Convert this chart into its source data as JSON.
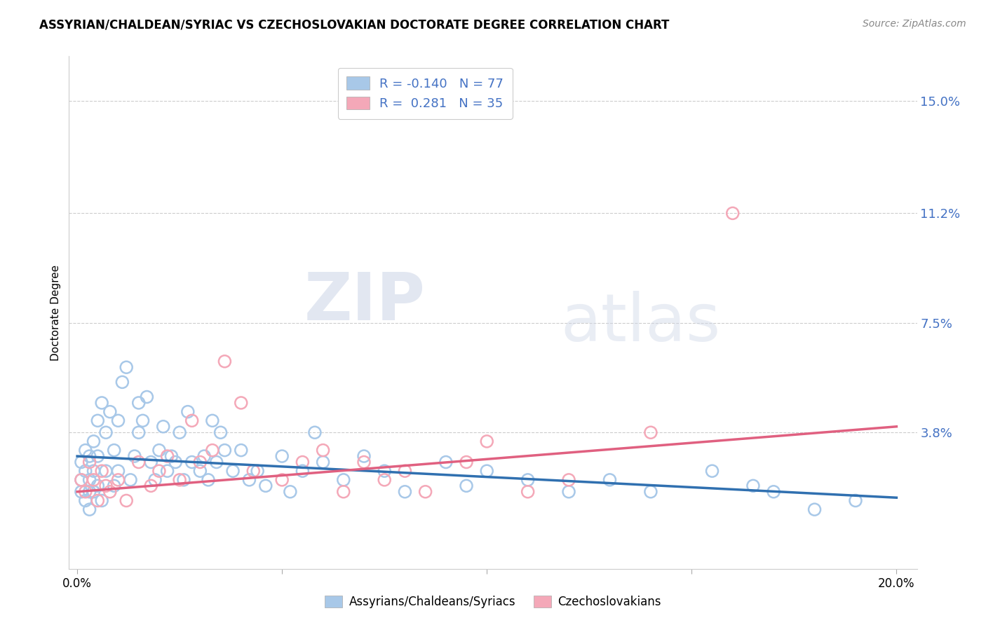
{
  "title": "ASSYRIAN/CHALDEAN/SYRIAC VS CZECHOSLOVAKIAN DOCTORATE DEGREE CORRELATION CHART",
  "source": "Source: ZipAtlas.com",
  "ylabel": "Doctorate Degree",
  "ytick_labels": [
    "3.8%",
    "7.5%",
    "11.2%",
    "15.0%"
  ],
  "ytick_values": [
    0.038,
    0.075,
    0.112,
    0.15
  ],
  "xtick_values": [
    0.0,
    0.05,
    0.1,
    0.15,
    0.2
  ],
  "xtick_labels": [
    "0.0%",
    "",
    "",
    "",
    "20.0%"
  ],
  "blue_color": "#a8c8e8",
  "pink_color": "#f4a8b8",
  "blue_line_color": "#3070b0",
  "pink_line_color": "#e06080",
  "blue_r": -0.14,
  "blue_n": 77,
  "pink_r": 0.281,
  "pink_n": 35,
  "xlim": [
    -0.002,
    0.205
  ],
  "ylim": [
    -0.008,
    0.165
  ],
  "watermark_zip": "ZIP",
  "watermark_atlas": "atlas",
  "ytick_color": "#4472c4",
  "blue_scatter_x": [
    0.001,
    0.001,
    0.001,
    0.002,
    0.002,
    0.002,
    0.003,
    0.003,
    0.003,
    0.003,
    0.004,
    0.004,
    0.004,
    0.005,
    0.005,
    0.005,
    0.006,
    0.006,
    0.007,
    0.007,
    0.008,
    0.009,
    0.009,
    0.01,
    0.01,
    0.011,
    0.012,
    0.013,
    0.014,
    0.015,
    0.015,
    0.016,
    0.017,
    0.018,
    0.019,
    0.02,
    0.021,
    0.022,
    0.023,
    0.024,
    0.025,
    0.026,
    0.027,
    0.028,
    0.03,
    0.031,
    0.032,
    0.033,
    0.034,
    0.035,
    0.036,
    0.038,
    0.04,
    0.042,
    0.044,
    0.046,
    0.05,
    0.052,
    0.055,
    0.058,
    0.06,
    0.065,
    0.07,
    0.075,
    0.08,
    0.09,
    0.095,
    0.1,
    0.11,
    0.12,
    0.13,
    0.14,
    0.155,
    0.165,
    0.17,
    0.18,
    0.19
  ],
  "blue_scatter_y": [
    0.028,
    0.022,
    0.018,
    0.032,
    0.025,
    0.015,
    0.03,
    0.022,
    0.018,
    0.012,
    0.035,
    0.025,
    0.018,
    0.042,
    0.03,
    0.02,
    0.048,
    0.015,
    0.038,
    0.025,
    0.045,
    0.032,
    0.02,
    0.042,
    0.025,
    0.055,
    0.06,
    0.022,
    0.03,
    0.048,
    0.038,
    0.042,
    0.05,
    0.028,
    0.022,
    0.032,
    0.04,
    0.025,
    0.03,
    0.028,
    0.038,
    0.022,
    0.045,
    0.028,
    0.025,
    0.03,
    0.022,
    0.042,
    0.028,
    0.038,
    0.032,
    0.025,
    0.032,
    0.022,
    0.025,
    0.02,
    0.03,
    0.018,
    0.025,
    0.038,
    0.028,
    0.022,
    0.03,
    0.025,
    0.018,
    0.028,
    0.02,
    0.025,
    0.022,
    0.018,
    0.022,
    0.018,
    0.025,
    0.02,
    0.018,
    0.012,
    0.015
  ],
  "pink_scatter_x": [
    0.001,
    0.002,
    0.003,
    0.004,
    0.005,
    0.006,
    0.007,
    0.008,
    0.01,
    0.012,
    0.015,
    0.018,
    0.02,
    0.022,
    0.025,
    0.028,
    0.03,
    0.033,
    0.036,
    0.04,
    0.043,
    0.05,
    0.055,
    0.06,
    0.065,
    0.07,
    0.075,
    0.08,
    0.085,
    0.095,
    0.1,
    0.11,
    0.12,
    0.14,
    0.16
  ],
  "pink_scatter_y": [
    0.022,
    0.018,
    0.028,
    0.022,
    0.015,
    0.025,
    0.02,
    0.018,
    0.022,
    0.015,
    0.028,
    0.02,
    0.025,
    0.03,
    0.022,
    0.042,
    0.028,
    0.032,
    0.062,
    0.048,
    0.025,
    0.022,
    0.028,
    0.032,
    0.018,
    0.028,
    0.022,
    0.025,
    0.018,
    0.028,
    0.035,
    0.018,
    0.022,
    0.038,
    0.112
  ],
  "blue_line_x": [
    0.0,
    0.2
  ],
  "blue_line_y_start": 0.03,
  "blue_line_y_end": 0.016,
  "pink_line_x": [
    0.0,
    0.2
  ],
  "pink_line_y_start": 0.018,
  "pink_line_y_end": 0.04,
  "legend_blue_label": "R = -0.140   N = 77",
  "legend_pink_label": "R =  0.281   N = 35",
  "bottom_legend_blue": "Assyrians/Chaldeans/Syriacs",
  "bottom_legend_pink": "Czechoslovakians"
}
